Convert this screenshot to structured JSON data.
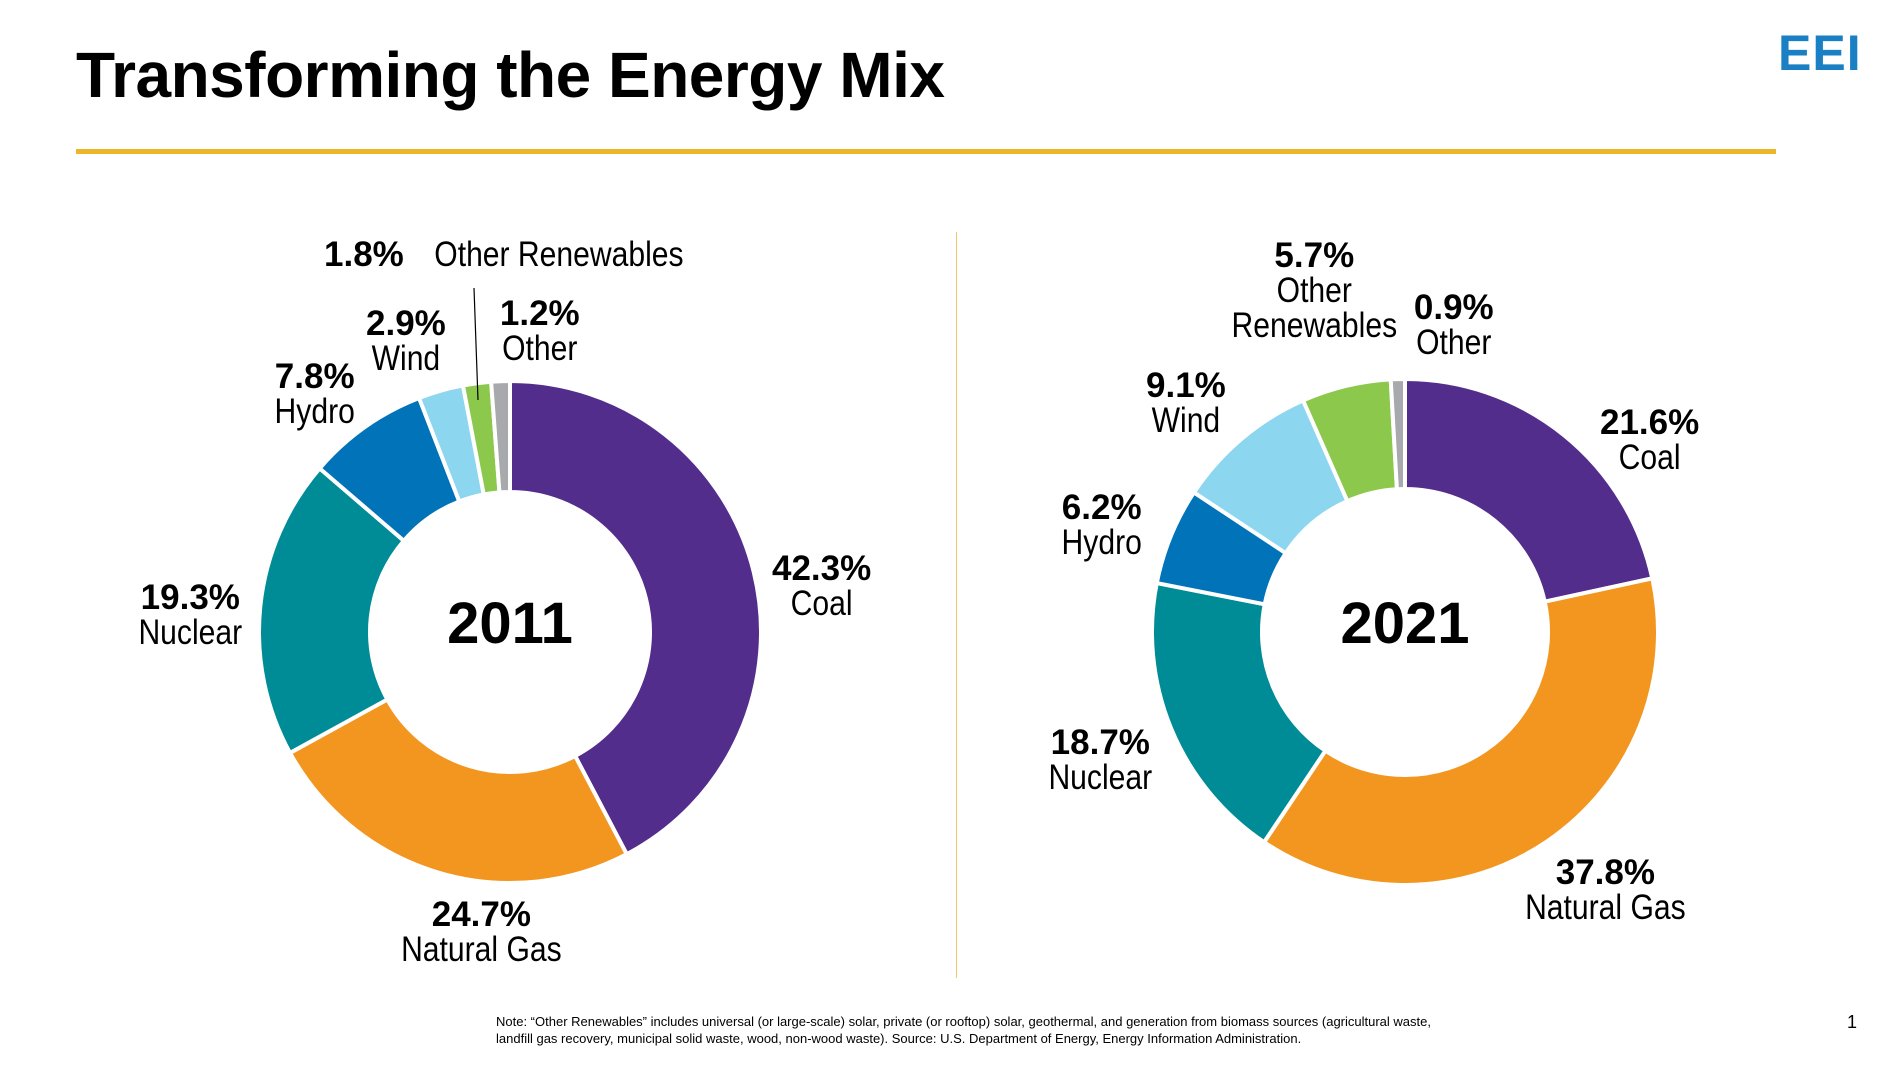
{
  "header": {
    "title": "Transforming the Energy Mix",
    "logo_text": "EEI"
  },
  "chart_data": [
    {
      "type": "pie",
      "center_label": "2011",
      "slices": [
        {
          "name": "Coal",
          "value": 42.3,
          "label_pct": "42.3%",
          "color": "#532d8c"
        },
        {
          "name": "Natural Gas",
          "value": 24.7,
          "label_pct": "24.7%",
          "color": "#f3961f"
        },
        {
          "name": "Nuclear",
          "value": 19.3,
          "label_pct": "19.3%",
          "color": "#008c96"
        },
        {
          "name": "Hydro",
          "value": 7.8,
          "label_pct": "7.8%",
          "color": "#0073b9"
        },
        {
          "name": "Wind",
          "value": 2.9,
          "label_pct": "2.9%",
          "color": "#8dd6f0"
        },
        {
          "name": "Other Renewables",
          "value": 1.8,
          "label_pct": "1.8%",
          "color": "#8bc84c"
        },
        {
          "name": "Other",
          "value": 1.2,
          "label_pct": "1.2%",
          "color": "#a7a9ac"
        }
      ]
    },
    {
      "type": "pie",
      "center_label": "2021",
      "slices": [
        {
          "name": "Coal",
          "value": 21.6,
          "label_pct": "21.6%",
          "color": "#532d8c"
        },
        {
          "name": "Natural Gas",
          "value": 37.8,
          "label_pct": "37.8%",
          "color": "#f3961f"
        },
        {
          "name": "Nuclear",
          "value": 18.7,
          "label_pct": "18.7%",
          "color": "#008c96"
        },
        {
          "name": "Hydro",
          "value": 6.2,
          "label_pct": "6.2%",
          "color": "#0073b9"
        },
        {
          "name": "Wind",
          "value": 9.1,
          "label_pct": "9.1%",
          "color": "#8dd6f0"
        },
        {
          "name": "Other Renewables",
          "value": 5.7,
          "label_pct": "5.7%",
          "color": "#8bc84c"
        },
        {
          "name": "Other",
          "value": 0.9,
          "label_pct": "0.9%",
          "color": "#a7a9ac"
        }
      ]
    }
  ],
  "footer": {
    "note": "Note: “Other Renewables” includes universal (or large-scale) solar, private (or rooftop) solar, geothermal, and generation from biomass sources (agricultural waste, landfill gas recovery, municipal solid waste, wood, non-wood waste). Source: U.S. Department of Energy, Energy Information Administration.",
    "page_number": "1"
  }
}
